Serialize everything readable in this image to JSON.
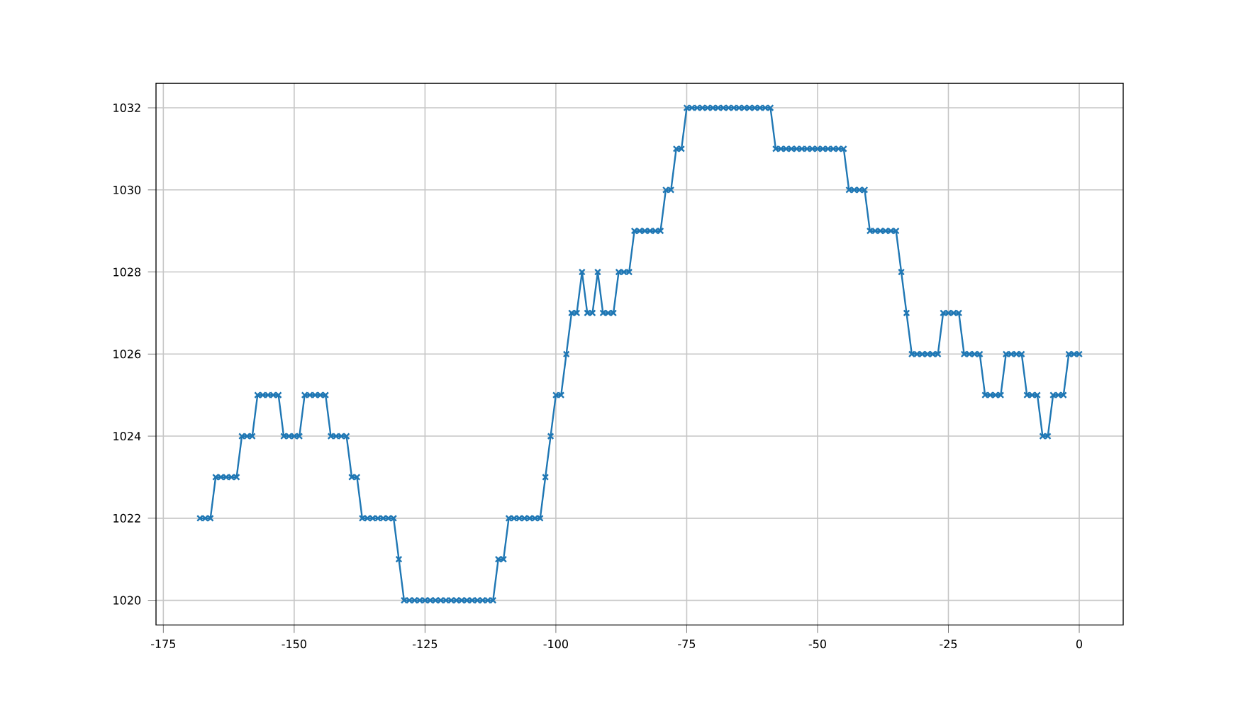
{
  "chart_data": {
    "type": "line",
    "marker": "cross",
    "grid": true,
    "color": "#1f77b4",
    "x": [
      -168,
      -167,
      -166,
      -165,
      -164,
      -163,
      -162,
      -161,
      -160,
      -159,
      -158,
      -157,
      -156,
      -155,
      -154,
      -153,
      -152,
      -151,
      -150,
      -149,
      -148,
      -147,
      -146,
      -145,
      -144,
      -143,
      -142,
      -141,
      -140,
      -139,
      -138,
      -137,
      -136,
      -135,
      -134,
      -133,
      -132,
      -131,
      -130,
      -129,
      -128,
      -127,
      -126,
      -125,
      -124,
      -123,
      -122,
      -121,
      -120,
      -119,
      -118,
      -117,
      -116,
      -115,
      -114,
      -113,
      -112,
      -111,
      -110,
      -109,
      -108,
      -107,
      -106,
      -105,
      -104,
      -103,
      -102,
      -101,
      -100,
      -99,
      -98,
      -97,
      -96,
      -95,
      -94,
      -93,
      -92,
      -91,
      -90,
      -89,
      -88,
      -87,
      -86,
      -85,
      -84,
      -83,
      -82,
      -81,
      -80,
      -79,
      -78,
      -77,
      -76,
      -75,
      -74,
      -73,
      -72,
      -71,
      -70,
      -69,
      -68,
      -67,
      -66,
      -65,
      -64,
      -63,
      -62,
      -61,
      -60,
      -59,
      -58,
      -57,
      -56,
      -55,
      -54,
      -53,
      -52,
      -51,
      -50,
      -49,
      -48,
      -47,
      -46,
      -45,
      -44,
      -43,
      -42,
      -41,
      -40,
      -39,
      -38,
      -37,
      -36,
      -35,
      -34,
      -33,
      -32,
      -31,
      -30,
      -29,
      -28,
      -27,
      -26,
      -25,
      -24,
      -23,
      -22,
      -21,
      -20,
      -19,
      -18,
      -17,
      -16,
      -15,
      -14,
      -13,
      -12,
      -11,
      -10,
      -9,
      -8,
      -7,
      -6,
      -5,
      -4,
      -3,
      -2,
      -1,
      0
    ],
    "values": [
      1022,
      1022,
      1022,
      1023,
      1023,
      1023,
      1023,
      1023,
      1024,
      1024,
      1024,
      1025,
      1025,
      1025,
      1025,
      1025,
      1024,
      1024,
      1024,
      1024,
      1025,
      1025,
      1025,
      1025,
      1025,
      1024,
      1024,
      1024,
      1024,
      1023,
      1023,
      1022,
      1022,
      1022,
      1022,
      1022,
      1022,
      1022,
      1021,
      1020,
      1020,
      1020,
      1020,
      1020,
      1020,
      1020,
      1020,
      1020,
      1020,
      1020,
      1020,
      1020,
      1020,
      1020,
      1020,
      1020,
      1020,
      1021,
      1021,
      1022,
      1022,
      1022,
      1022,
      1022,
      1022,
      1022,
      1023,
      1024,
      1025,
      1025,
      1026,
      1027,
      1027,
      1028,
      1027,
      1027,
      1028,
      1027,
      1027,
      1027,
      1028,
      1028,
      1028,
      1029,
      1029,
      1029,
      1029,
      1029,
      1029,
      1030,
      1030,
      1031,
      1031,
      1032,
      1032,
      1032,
      1032,
      1032,
      1032,
      1032,
      1032,
      1032,
      1032,
      1032,
      1032,
      1032,
      1032,
      1032,
      1032,
      1032,
      1031,
      1031,
      1031,
      1031,
      1031,
      1031,
      1031,
      1031,
      1031,
      1031,
      1031,
      1031,
      1031,
      1031,
      1030,
      1030,
      1030,
      1030,
      1029,
      1029,
      1029,
      1029,
      1029,
      1029,
      1028,
      1027,
      1026,
      1026,
      1026,
      1026,
      1026,
      1026,
      1027,
      1027,
      1027,
      1027,
      1026,
      1026,
      1026,
      1026,
      1025,
      1025,
      1025,
      1025,
      1026,
      1026,
      1026,
      1026,
      1025,
      1025,
      1025,
      1024,
      1024,
      1025,
      1025,
      1025,
      1026,
      1026,
      1026
    ],
    "xlim": [
      -176.4,
      8.4
    ],
    "ylim": [
      1019.4,
      1032.6
    ],
    "xticks": [
      -175,
      -150,
      -125,
      -100,
      -75,
      -50,
      -25,
      0
    ],
    "yticks": [
      1020,
      1022,
      1024,
      1026,
      1028,
      1030,
      1032
    ]
  }
}
